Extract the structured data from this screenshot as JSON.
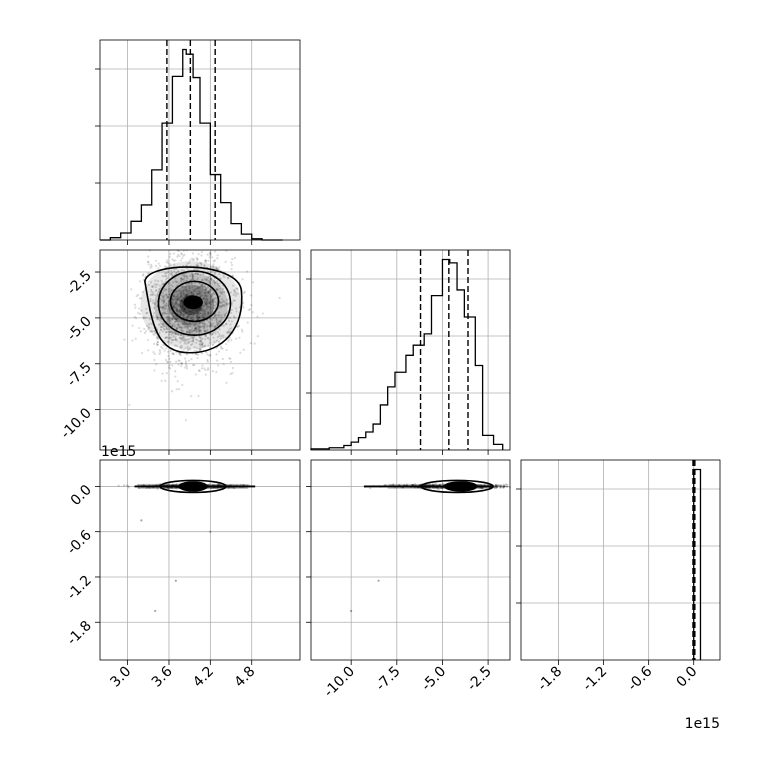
{
  "chart_data": [
    {
      "panel": "hist-0",
      "type": "histogram",
      "x_range": [
        2.6,
        5.5
      ],
      "x_ticks": [
        "3.0",
        "3.6",
        "4.2",
        "4.8"
      ],
      "x_tick_values": [
        3.0,
        3.6,
        4.2,
        4.8
      ],
      "y_ticks_unlabeled": true,
      "grid": true,
      "bins": [
        2.6,
        2.75,
        2.9,
        3.05,
        3.2,
        3.35,
        3.5,
        3.65,
        3.8,
        3.85,
        3.95,
        4.05,
        4.2,
        4.35,
        4.5,
        4.65,
        4.8,
        4.95,
        5.1,
        5.25
      ],
      "counts": [
        0,
        2,
        6,
        16,
        30,
        60,
        100,
        140,
        163,
        159,
        139,
        100,
        56,
        32,
        14,
        5,
        1,
        0,
        0
      ],
      "quantiles_dashed": [
        3.57,
        3.91,
        4.27
      ]
    },
    {
      "panel": "hist-1",
      "type": "histogram",
      "x_range": [
        -12.2,
        -1.3
      ],
      "x_ticks": [
        "-10.0",
        "-7.5",
        "-5.0",
        "-2.5"
      ],
      "x_tick_values": [
        -10.0,
        -7.5,
        -5.0,
        -2.5
      ],
      "y_ticks_unlabeled": true,
      "grid": true,
      "bins": [
        -12.2,
        -11.2,
        -10.4,
        -10.0,
        -9.6,
        -9.2,
        -8.8,
        -8.4,
        -8.0,
        -7.6,
        -7.0,
        -6.6,
        -6.0,
        -5.6,
        -5.0,
        -4.6,
        -4.2,
        -3.8,
        -3.2,
        -2.8,
        -2.2,
        -1.7
      ],
      "counts": [
        1,
        2,
        4,
        7,
        11,
        16,
        23,
        40,
        56,
        69,
        84,
        93,
        103,
        137,
        169,
        166,
        142,
        118,
        75,
        13,
        5
      ],
      "quantiles_dashed": [
        -6.2,
        -4.65,
        -3.6
      ]
    },
    {
      "panel": "hist-2",
      "type": "histogram",
      "x_range": [
        -2.3,
        0.35
      ],
      "x_ticks": [
        "-1.8",
        "-1.2",
        "-0.6",
        "0.0"
      ],
      "x_tick_values": [
        -1.8,
        -1.2,
        -0.6,
        0.0
      ],
      "x_offset_label": "1e15",
      "y_ticks_unlabeled": true,
      "grid": true,
      "bins": [
        0.0,
        0.09
      ],
      "counts": [
        1
      ],
      "quantiles_dashed": [
        -0.01,
        0.0,
        0.015
      ]
    },
    {
      "panel": "scatter-1-0",
      "type": "scatter",
      "note": "2D density contours with scattered points",
      "x_range": [
        2.6,
        5.5
      ],
      "y_range": [
        -12.2,
        -1.3
      ],
      "y_ticks": [
        "-2.5",
        "-5.0",
        "-7.5",
        "-10.0"
      ],
      "y_tick_values": [
        -2.5,
        -5.0,
        -7.5,
        -10.0
      ],
      "grid": true,
      "density_peak": [
        3.9,
        -4.2
      ],
      "contour_levels": 4
    },
    {
      "panel": "scatter-2-0",
      "type": "scatter",
      "x_range": [
        2.6,
        5.5
      ],
      "y_range": [
        -2.3,
        0.35
      ],
      "y_ticks": [
        "0.0",
        "-0.6",
        "-1.2",
        "-1.8"
      ],
      "y_tick_values": [
        0.0,
        -0.6,
        -1.2,
        -1.8
      ],
      "y_offset_label": "1e15",
      "grid": true,
      "density_peak": [
        3.9,
        0.0
      ],
      "outliers": [
        [
          3.4,
          -1.65
        ],
        [
          3.2,
          -0.45
        ],
        [
          3.7,
          -1.25
        ],
        [
          4.2,
          -0.6
        ]
      ]
    },
    {
      "panel": "scatter-2-1",
      "type": "scatter",
      "x_range": [
        -12.2,
        -1.3
      ],
      "y_range": [
        -2.3,
        0.35
      ],
      "grid": true,
      "density_peak": [
        -4.2,
        0.0
      ],
      "outliers": [
        [
          -10.0,
          -1.65
        ],
        [
          -8.5,
          -1.25
        ]
      ]
    }
  ]
}
